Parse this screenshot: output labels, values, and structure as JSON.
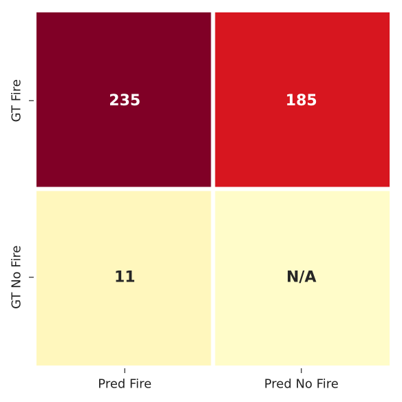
{
  "chart_data": {
    "type": "heatmap",
    "title": "",
    "xlabel": "",
    "ylabel": "",
    "x_categories": [
      "Pred Fire",
      "Pred No Fire"
    ],
    "y_categories": [
      "GT Fire",
      "GT No Fire"
    ],
    "cells": [
      [
        {
          "value": 235,
          "label": "235"
        },
        {
          "value": 185,
          "label": "185"
        }
      ],
      [
        {
          "value": 11,
          "label": "11"
        },
        {
          "value": null,
          "label": "N/A"
        }
      ]
    ],
    "colormap": "YlOrRd",
    "colorbar": false,
    "grid": false
  },
  "colors": {
    "cell_colors": [
      [
        "#800026",
        "#d7161f"
      ],
      [
        "#fff7bd",
        "#fffcc9"
      ]
    ],
    "text_light": "#ffffff",
    "text_dark": "#262626",
    "separator": "#ffffff"
  }
}
